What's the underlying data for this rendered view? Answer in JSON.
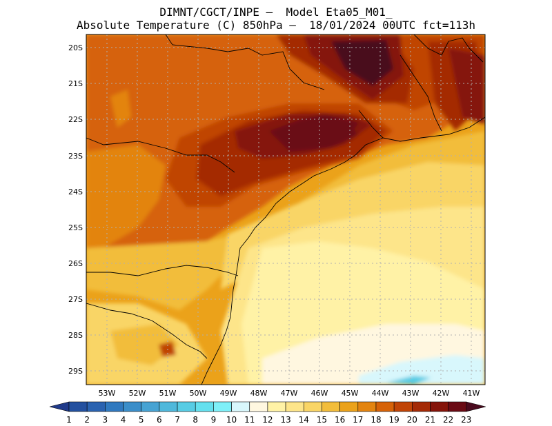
{
  "header": {
    "title_line1": "DIMNT/CGCT/INPE –  Model Eta05_M01_",
    "title_line2": "Absolute Temperature (C) 850hPa –  18/01/2024 00UTC fct=113h"
  },
  "map": {
    "lat_labels": [
      "20S",
      "21S",
      "22S",
      "23S",
      "24S",
      "25S",
      "26S",
      "27S",
      "28S",
      "29S"
    ],
    "lon_labels": [
      "53W",
      "52W",
      "51W",
      "50W",
      "49W",
      "48W",
      "47W",
      "46W",
      "45W",
      "44W",
      "43W",
      "42W",
      "41W"
    ]
  },
  "colorbar": {
    "labels": [
      "1",
      "2",
      "3",
      "4",
      "5",
      "6",
      "7",
      "8",
      "9",
      "10",
      "11",
      "12",
      "13",
      "14",
      "15",
      "16",
      "17",
      "18",
      "19",
      "20",
      "21",
      "22",
      "23"
    ],
    "colors": [
      "#1f3a8a",
      "#23509f",
      "#2a62b0",
      "#3079bf",
      "#3b8ec9",
      "#47a3d3",
      "#4fb8db",
      "#57cce4",
      "#64e0ee",
      "#7ef0f8",
      "#d8f7fc",
      "#fff7e0",
      "#fff2a6",
      "#fde58a",
      "#f9d566",
      "#f2bd3b",
      "#eba21a",
      "#e38410",
      "#d66208",
      "#c04406",
      "#a42a06",
      "#85140a",
      "#6a0a14",
      "#4a0a1e"
    ]
  }
}
